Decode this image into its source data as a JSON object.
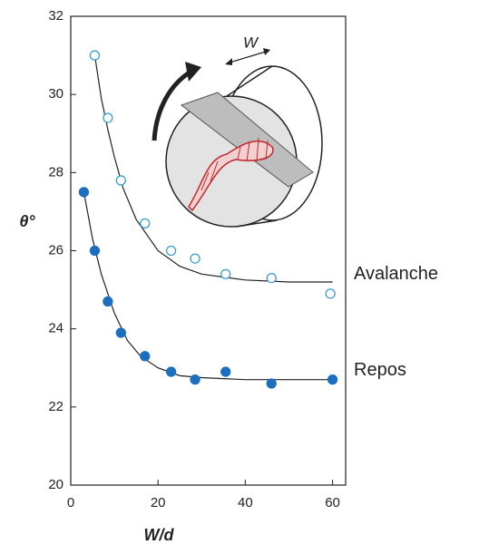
{
  "chart_data": {
    "type": "scatter",
    "xlabel": "W/d",
    "ylabel": "θ°",
    "inset_label": "W",
    "xlim": [
      0,
      63
    ],
    "ylim": [
      20,
      32
    ],
    "xticks": [
      0,
      20,
      40,
      60
    ],
    "yticks": [
      20,
      22,
      24,
      26,
      28,
      30,
      32
    ],
    "fit_color": "#222222",
    "series": [
      {
        "name": "Avalanche",
        "color": "#3b9fd1",
        "marker": "open",
        "x": [
          5.5,
          8.5,
          11.5,
          17,
          23,
          28.5,
          35.5,
          46,
          59.5
        ],
        "values": [
          31,
          29.4,
          27.8,
          26.7,
          26,
          25.8,
          25.4,
          25.3,
          24.9
        ],
        "fit_x": [
          5.5,
          7,
          8.5,
          10,
          12,
          15,
          20,
          25,
          30,
          40,
          50,
          60
        ],
        "fit_values": [
          31,
          29.9,
          29.1,
          28.4,
          27.6,
          26.8,
          26.0,
          25.6,
          25.4,
          25.25,
          25.2,
          25.2
        ]
      },
      {
        "name": "Repos",
        "color": "#1a6fc0",
        "marker": "filled",
        "x": [
          3,
          5.5,
          8.5,
          11.5,
          17,
          23,
          28.5,
          35.5,
          46,
          60
        ],
        "values": [
          27.5,
          26,
          24.7,
          23.9,
          23.3,
          22.9,
          22.7,
          22.9,
          22.6,
          22.7
        ],
        "fit_x": [
          3,
          5,
          7,
          10,
          13,
          16,
          20,
          25,
          30,
          40,
          60
        ],
        "fit_values": [
          27.5,
          26.3,
          25.4,
          24.4,
          23.7,
          23.3,
          23.0,
          22.8,
          22.75,
          22.7,
          22.7
        ]
      }
    ]
  }
}
